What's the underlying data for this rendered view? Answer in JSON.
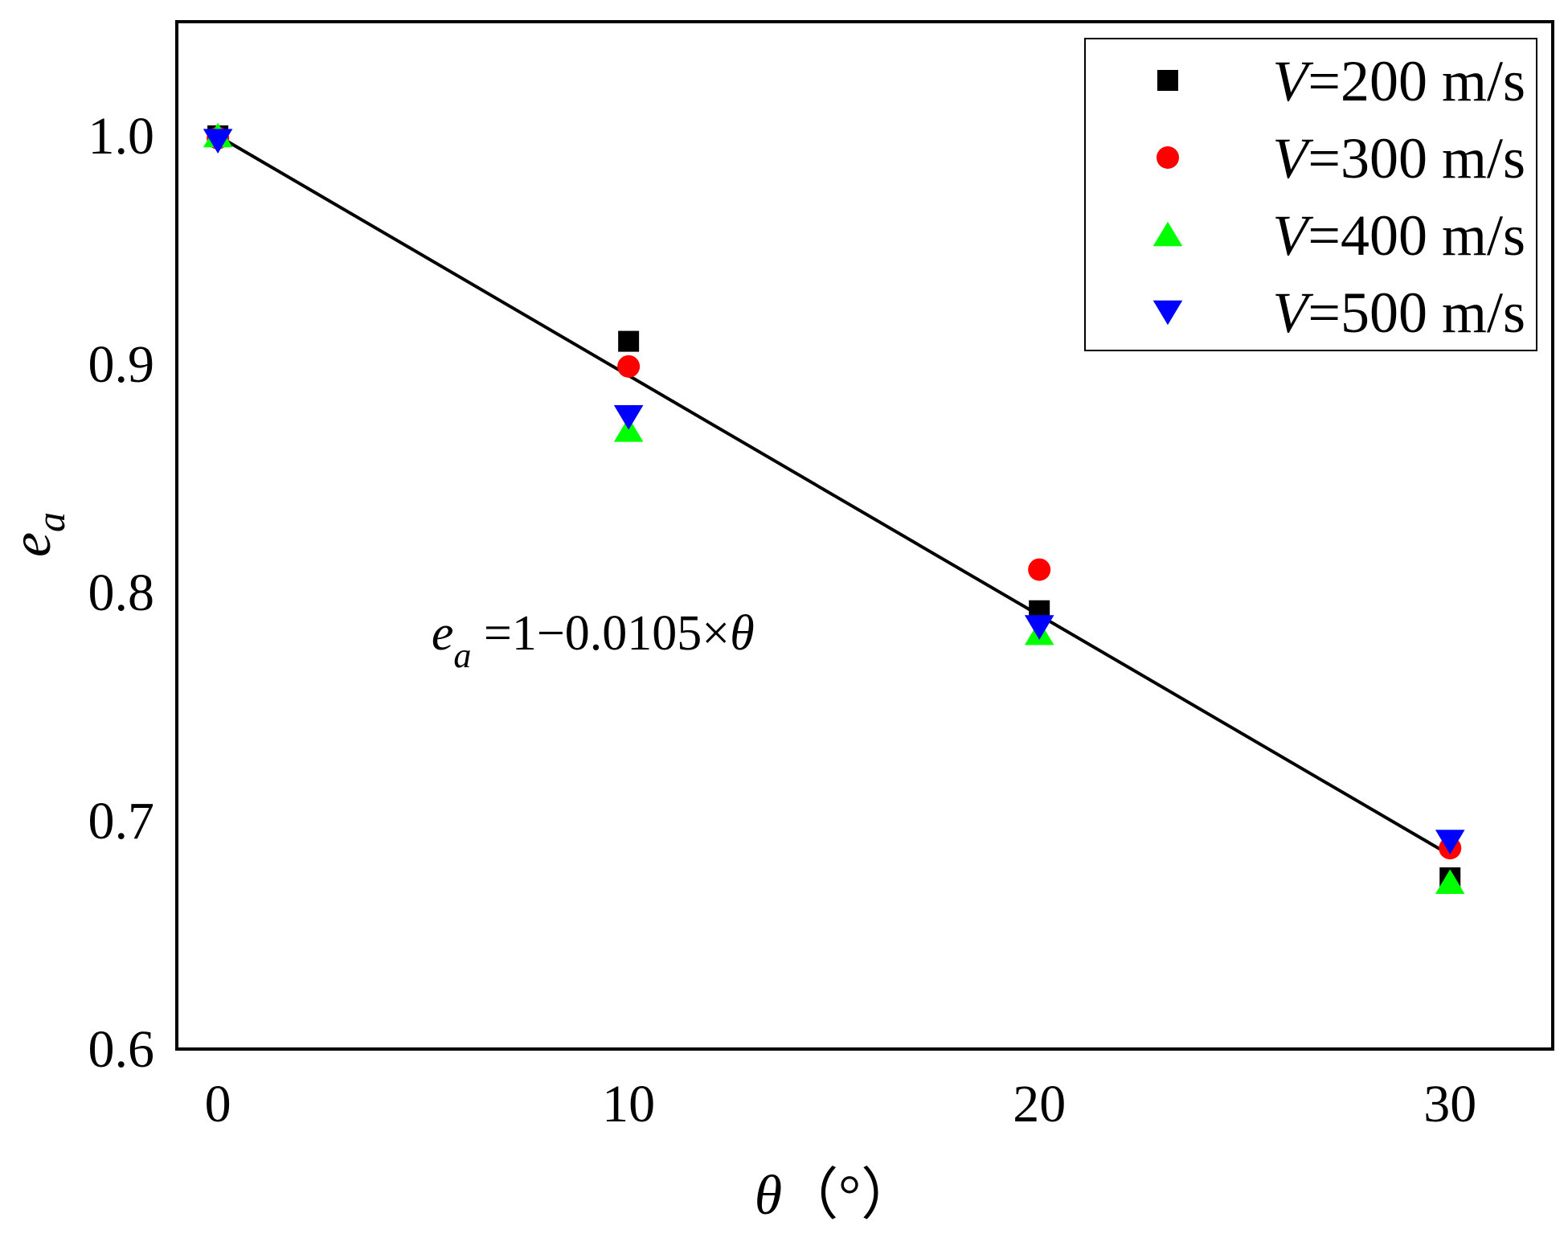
{
  "chart_data": {
    "type": "scatter",
    "xlabel": {
      "symbol": "θ",
      "unit": "（°）"
    },
    "ylabel": {
      "symbol": "e",
      "subscript": "a"
    },
    "xlim": [
      -1,
      32.5
    ],
    "ylim": [
      0.6,
      1.05
    ],
    "x_ticks": [
      0,
      10,
      20,
      30
    ],
    "x_tick_labels": [
      "0",
      "10",
      "20",
      "30"
    ],
    "y_ticks": [
      0.6,
      0.7,
      0.8,
      0.9,
      1.0
    ],
    "y_tick_labels": [
      "0.6",
      "0.7",
      "0.8",
      "0.9",
      "1.0"
    ],
    "grid": false,
    "legend_position": "top-right",
    "series": [
      {
        "name": "V=200 m/s",
        "name_var": "V",
        "name_rest": "=200 m/s",
        "marker": "square",
        "color": "#000000",
        "x": [
          0,
          10,
          20,
          30
        ],
        "y": [
          1.0,
          0.91,
          0.792,
          0.675
        ]
      },
      {
        "name": "V=300 m/s",
        "name_var": "V",
        "name_rest": "=300 m/s",
        "marker": "circle",
        "color": "#ff0000",
        "x": [
          0,
          10,
          20,
          30
        ],
        "y": [
          0.999,
          0.899,
          0.81,
          0.688
        ]
      },
      {
        "name": "V=400 m/s",
        "name_var": "V",
        "name_rest": "=400 m/s",
        "marker": "triangle-up",
        "color": "#00ff00",
        "x": [
          0,
          10,
          20,
          30
        ],
        "y": [
          1.0,
          0.871,
          0.782,
          0.673
        ]
      },
      {
        "name": "V=500 m/s",
        "name_var": "V",
        "name_rest": "=500 m/s",
        "marker": "triangle-down",
        "color": "#0000ff",
        "x": [
          0,
          10,
          20,
          30
        ],
        "y": [
          0.998,
          0.877,
          0.785,
          0.691
        ]
      }
    ],
    "fit_line": {
      "color": "#000000",
      "x": [
        0,
        30
      ],
      "y": [
        1.0,
        0.685
      ]
    },
    "annotation": {
      "lhs_symbol": "e",
      "lhs_subscript": "a",
      "rhs_text": " =1−0.0105×",
      "rhs_var": "θ",
      "x": 5.2,
      "y": 0.775
    }
  }
}
